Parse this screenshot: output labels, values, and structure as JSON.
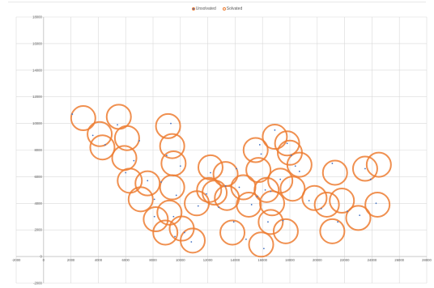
{
  "chart_data": {
    "type": "scatter",
    "title": "",
    "xlabel": "",
    "ylabel": "",
    "xlim": [
      -2000,
      28000
    ],
    "ylim": [
      -2000,
      18000
    ],
    "x_ticks": [
      "-2000",
      "0",
      "2000",
      "4000",
      "6000",
      "8000",
      "10000",
      "12000",
      "14000",
      "16000",
      "18000",
      "20000",
      "22000",
      "24000",
      "26000",
      "28000"
    ],
    "y_ticks": [
      "-2000",
      "0",
      "2000",
      "4000",
      "6000",
      "8000",
      "10000",
      "12000",
      "14000",
      "16000",
      "18000"
    ],
    "grid": true,
    "legend_position": "top",
    "series": [
      {
        "name": "Unsolvated",
        "color": "#4472C4",
        "marker": "dot",
        "points": [
          [
            2100,
            10700
          ],
          [
            3600,
            9100
          ],
          [
            4500,
            8400
          ],
          [
            5400,
            9900
          ],
          [
            6000,
            6300
          ],
          [
            6600,
            7200
          ],
          [
            7000,
            8700
          ],
          [
            7600,
            5700
          ],
          [
            8100,
            4300
          ],
          [
            8100,
            3000
          ],
          [
            8600,
            5600
          ],
          [
            9000,
            7600
          ],
          [
            9300,
            10000
          ],
          [
            9600,
            1500
          ],
          [
            9500,
            3000
          ],
          [
            9700,
            4600
          ],
          [
            10000,
            6800
          ],
          [
            10300,
            1800
          ],
          [
            10800,
            1100
          ],
          [
            11300,
            3800
          ],
          [
            11900,
            4700
          ],
          [
            12200,
            6300
          ],
          [
            12800,
            3700
          ],
          [
            13300,
            5300
          ],
          [
            13900,
            2600
          ],
          [
            14100,
            6600
          ],
          [
            14300,
            5200
          ],
          [
            14800,
            1300
          ],
          [
            15200,
            3900
          ],
          [
            15600,
            4500
          ],
          [
            15800,
            8400
          ],
          [
            15900,
            7700
          ],
          [
            16100,
            600
          ],
          [
            16200,
            5000
          ],
          [
            16400,
            2600
          ],
          [
            16600,
            4900
          ],
          [
            16900,
            9500
          ],
          [
            17300,
            5800
          ],
          [
            17500,
            2700
          ],
          [
            17800,
            8500
          ],
          [
            18100,
            7600
          ],
          [
            18400,
            6800
          ],
          [
            18700,
            6400
          ],
          [
            19400,
            4200
          ],
          [
            20300,
            3600
          ],
          [
            21100,
            7000
          ],
          [
            21500,
            2600
          ],
          [
            22200,
            3400
          ],
          [
            23100,
            3100
          ],
          [
            23500,
            6600
          ],
          [
            23900,
            5800
          ],
          [
            24300,
            4000
          ]
        ]
      },
      {
        "name": "Solvated",
        "color": "#ED7D31",
        "marker": "circle",
        "points": [
          [
            2900,
            10400
          ],
          [
            4100,
            9200
          ],
          [
            4300,
            8200
          ],
          [
            5500,
            10500
          ],
          [
            6100,
            8900
          ],
          [
            5900,
            7400
          ],
          [
            6300,
            5700
          ],
          [
            7100,
            4300
          ],
          [
            7600,
            5500
          ],
          [
            8200,
            2800
          ],
          [
            8900,
            1800
          ],
          [
            9100,
            9800
          ],
          [
            9400,
            8300
          ],
          [
            9500,
            7000
          ],
          [
            9400,
            5200
          ],
          [
            9200,
            3300
          ],
          [
            10100,
            2100
          ],
          [
            10900,
            1200
          ],
          [
            11200,
            4000
          ],
          [
            12200,
            6700
          ],
          [
            12100,
            5000
          ],
          [
            12500,
            4800
          ],
          [
            13300,
            6200
          ],
          [
            13400,
            4400
          ],
          [
            13800,
            1800
          ],
          [
            14600,
            5200
          ],
          [
            15000,
            3900
          ],
          [
            15500,
            8000
          ],
          [
            15700,
            6500
          ],
          [
            15900,
            900
          ],
          [
            16300,
            5000
          ],
          [
            16600,
            2600
          ],
          [
            16700,
            4000
          ],
          [
            16900,
            9000
          ],
          [
            17300,
            5700
          ],
          [
            17700,
            1900
          ],
          [
            17800,
            8500
          ],
          [
            18000,
            7800
          ],
          [
            18200,
            5100
          ],
          [
            18700,
            6900
          ],
          [
            19800,
            4400
          ],
          [
            20700,
            3900
          ],
          [
            21100,
            1900
          ],
          [
            21300,
            6300
          ],
          [
            21800,
            4200
          ],
          [
            23000,
            2900
          ],
          [
            23500,
            6600
          ],
          [
            24500,
            6900
          ],
          [
            24400,
            3900
          ]
        ]
      }
    ],
    "colors": {
      "grid": "#d9d9d9",
      "axis": "#bfbfbf",
      "tick_text": "#595959"
    }
  }
}
